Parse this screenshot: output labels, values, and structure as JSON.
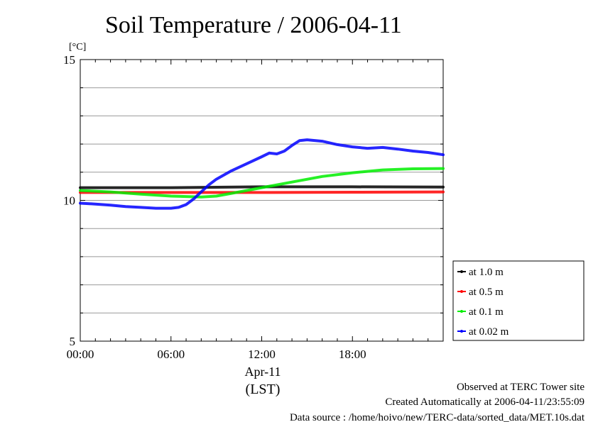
{
  "chart_data": {
    "type": "line",
    "title": "Soil Temperature / 2006-04-11",
    "ylabel": "[°C]",
    "ylim": [
      5,
      15
    ],
    "yticks": [
      5,
      10,
      15
    ],
    "xlim": [
      0,
      24
    ],
    "xtick_labels": [
      "00:00",
      "06:00",
      "12:00",
      "18:00"
    ],
    "date_label": "Apr-11",
    "timezone_label": "(LST)",
    "grid": true,
    "legend_position": "right",
    "series": [
      {
        "name": "at 1.0 m",
        "color": "#000000",
        "x": [
          0,
          6,
          12,
          18,
          24
        ],
        "y": [
          10.45,
          10.45,
          10.48,
          10.48,
          10.47
        ]
      },
      {
        "name": "at 0.5 m",
        "color": "#ff0000",
        "x": [
          0,
          6,
          12,
          18,
          24
        ],
        "y": [
          10.28,
          10.28,
          10.28,
          10.29,
          10.3
        ]
      },
      {
        "name": "at 0.1 m",
        "color": "#00ee00",
        "x": [
          0,
          2,
          4,
          6,
          8,
          9,
          10,
          12,
          14,
          16,
          18,
          20,
          22,
          24
        ],
        "y": [
          10.35,
          10.3,
          10.22,
          10.15,
          10.12,
          10.15,
          10.25,
          10.45,
          10.65,
          10.85,
          10.98,
          11.08,
          11.12,
          11.13
        ]
      },
      {
        "name": "at 0.02 m",
        "color": "#0000ff",
        "x": [
          0,
          1,
          2,
          3,
          4,
          5,
          6,
          6.5,
          7,
          7.5,
          8,
          8.5,
          9,
          10,
          11,
          12,
          12.5,
          13,
          13.5,
          14,
          14.5,
          15,
          16,
          17,
          18,
          19,
          20,
          21,
          22,
          23,
          24
        ],
        "y": [
          9.9,
          9.87,
          9.83,
          9.78,
          9.75,
          9.72,
          9.72,
          9.75,
          9.85,
          10.05,
          10.3,
          10.55,
          10.75,
          11.05,
          11.3,
          11.55,
          11.68,
          11.65,
          11.75,
          11.95,
          12.12,
          12.15,
          12.1,
          11.98,
          11.9,
          11.85,
          11.88,
          11.82,
          11.75,
          11.7,
          11.62
        ]
      }
    ]
  },
  "footer": {
    "line1": "Observed at TERC Tower site",
    "line2": "Created Automatically at 2006-04-11/23:55:09",
    "line3": "Data source : /home/hoivo/new/TERC-data/sorted_data/MET.10s.dat"
  }
}
